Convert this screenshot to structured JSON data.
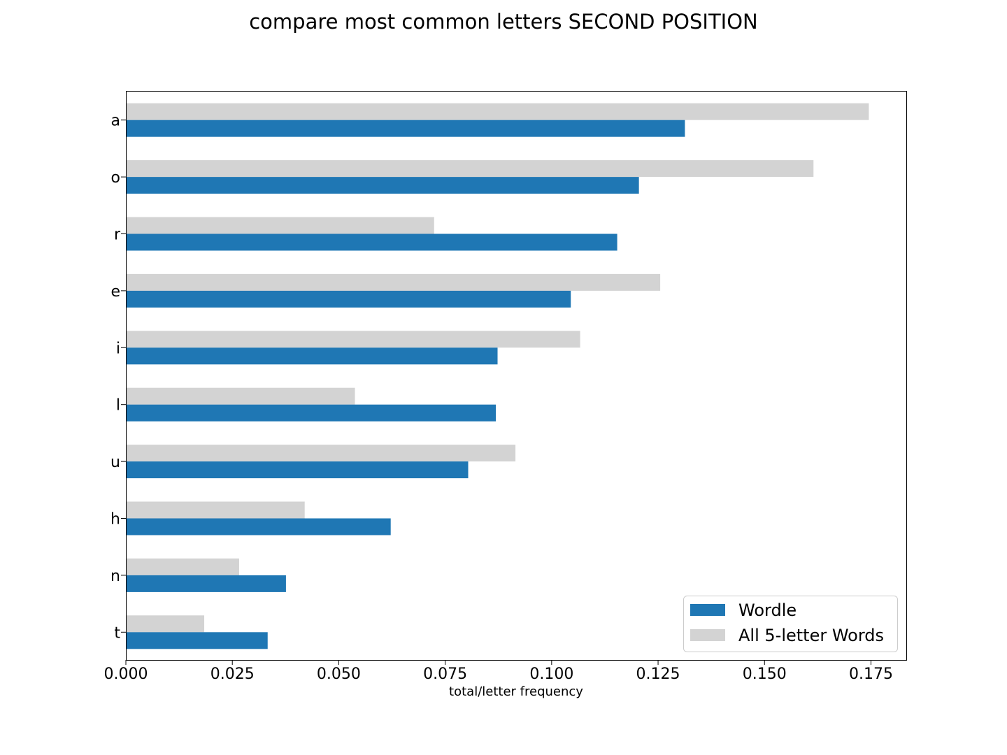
{
  "chart_data": {
    "type": "bar",
    "orientation": "horizontal",
    "title": "compare most common letters SECOND POSITION",
    "xlabel": "total/letter frequency",
    "ylabel": "",
    "categories": [
      "a",
      "o",
      "r",
      "e",
      "i",
      "l",
      "u",
      "h",
      "n",
      "t"
    ],
    "series": [
      {
        "name": "Wordle",
        "color": "#1f77b4",
        "values": [
          0.1313,
          0.1205,
          0.1154,
          0.1045,
          0.0873,
          0.0869,
          0.0804,
          0.0622,
          0.0376,
          0.0333
        ]
      },
      {
        "name": "All 5-letter Words",
        "color": "#d3d3d3",
        "values": [
          0.1745,
          0.1615,
          0.0724,
          0.1255,
          0.1067,
          0.0538,
          0.0915,
          0.042,
          0.0266,
          0.0184
        ]
      }
    ],
    "xlim": [
      0,
      0.1833
    ],
    "xticks": [
      "0.000",
      "0.025",
      "0.050",
      "0.075",
      "0.100",
      "0.125",
      "0.150",
      "0.175"
    ],
    "xtick_values": [
      0,
      0.025,
      0.05,
      0.075,
      0.1,
      0.125,
      0.15,
      0.175
    ],
    "grid": false,
    "legend_position": "lower-right"
  }
}
